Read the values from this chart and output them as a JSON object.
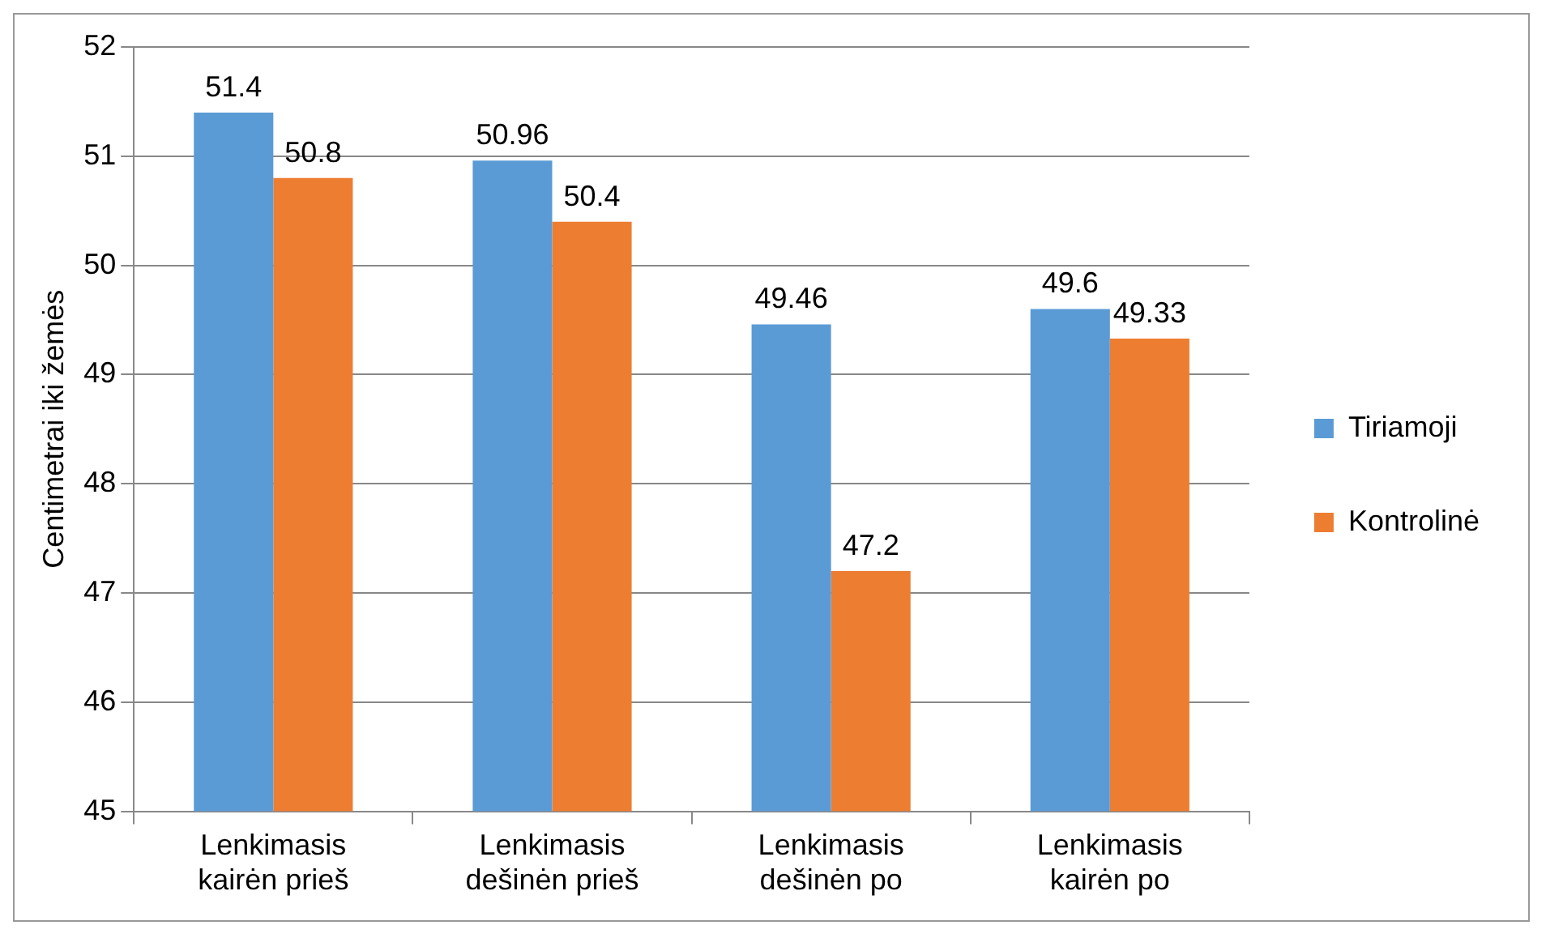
{
  "chart_data": {
    "type": "bar",
    "ylabel": "Centimetrai iki žemės",
    "categories": [
      "Lenkimasis kairėn prieš",
      "Lenkimasis dešinėn prieš",
      "Lenkimasis dešinėn po",
      "Lenkimasis kairėn po"
    ],
    "series": [
      {
        "name": "Tiriamoji",
        "color": "#5b9bd5",
        "values": [
          51.4,
          50.96,
          49.46,
          49.6
        ]
      },
      {
        "name": "Kontrolinė",
        "color": "#ed7d31",
        "values": [
          50.8,
          50.4,
          47.2,
          49.33
        ]
      }
    ],
    "ylim": [
      45,
      52
    ],
    "yticks": [
      45,
      46,
      47,
      48,
      49,
      50,
      51,
      52
    ],
    "grid": "y",
    "legend": "right",
    "data_labels": true
  }
}
